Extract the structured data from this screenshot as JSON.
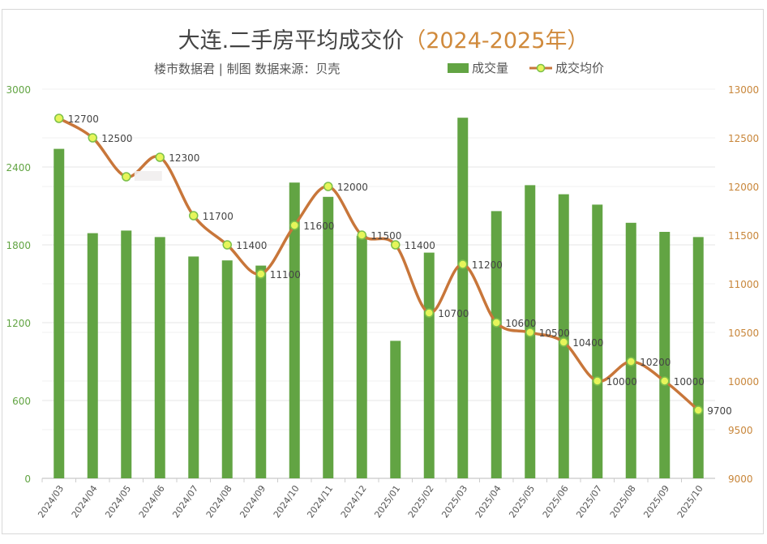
{
  "chart_data": {
    "type": "bar+line",
    "title": "大连.二手房平均成交价",
    "title_suffix": "（2024-2025年）",
    "subtitle": "楼市数据君 | 制图  数据来源：贝壳",
    "categories": [
      "2024/03",
      "2024/04",
      "2024/05",
      "2024/06",
      "2024/07",
      "2024/08",
      "2024/09",
      "2024/10",
      "2024/11",
      "2024/12",
      "2025/01",
      "2025/02",
      "2025/03",
      "2025/04",
      "2025/05",
      "2025/06",
      "2025/07",
      "2025/08",
      "2025/09",
      "2025/10"
    ],
    "series": [
      {
        "name": "成交量",
        "type": "bar",
        "axis": "left",
        "color": "#62a443",
        "values": [
          2540,
          1890,
          1910,
          1860,
          1710,
          1680,
          1640,
          2280,
          2170,
          1870,
          1060,
          1740,
          2780,
          2060,
          2260,
          2190,
          2110,
          1970,
          1900,
          1860
        ]
      },
      {
        "name": "成交均价",
        "type": "line",
        "axis": "right",
        "color": "#c8763a",
        "marker_fill": "#e6f55a",
        "marker_stroke": "#7cc04a",
        "values": [
          12700,
          12500,
          12100,
          12300,
          11700,
          11400,
          11100,
          11600,
          12000,
          11500,
          11400,
          10700,
          11200,
          10600,
          10500,
          10400,
          10000,
          10200,
          10000,
          9700
        ],
        "labels": [
          "12700",
          "12500",
          null,
          "12300",
          "11700",
          "11400",
          "11100",
          "11600",
          "12000",
          "11500",
          "11400",
          "10700",
          "11200",
          "10600",
          "10500",
          "10400",
          "10000",
          "10200",
          "10000",
          "9700"
        ]
      }
    ],
    "left_axis": {
      "range": [
        0,
        3000
      ],
      "ticks": [
        "0",
        "600",
        "1200",
        "1800",
        "2400",
        "3000"
      ],
      "color": "#62a443"
    },
    "right_axis": {
      "range": [
        9000,
        13000
      ],
      "ticks": [
        "9000",
        "9500",
        "10000",
        "10500",
        "11000",
        "11500",
        "12000",
        "12500",
        "13000"
      ],
      "color": "#c8863a"
    },
    "grid": true,
    "legend": "top-right"
  }
}
